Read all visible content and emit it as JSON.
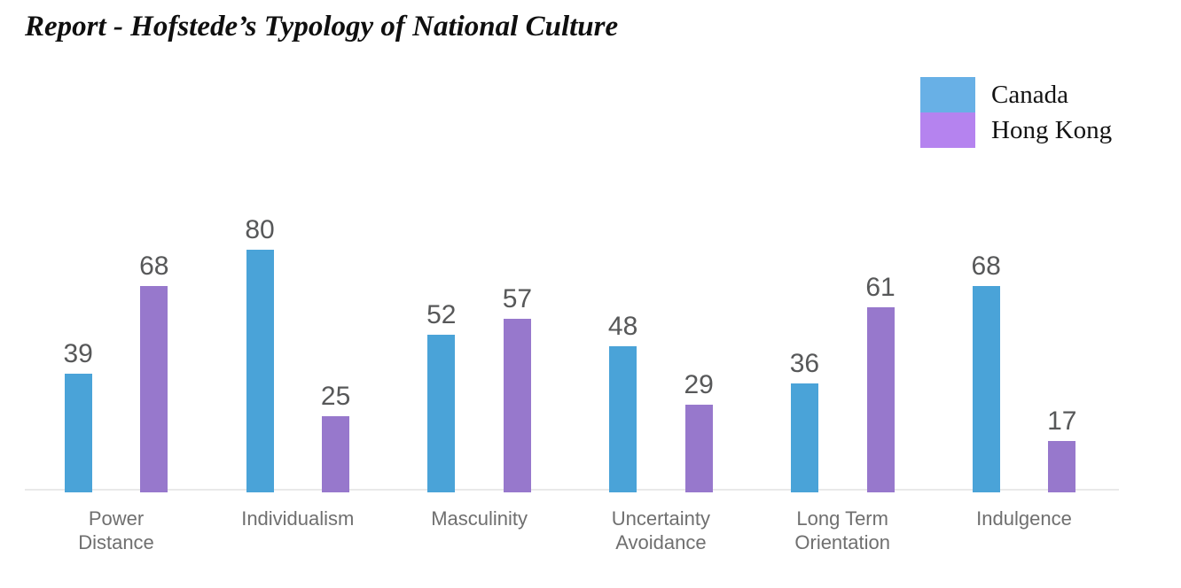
{
  "page": {
    "title": "Report - Hofstede’s Typology of National Culture"
  },
  "legend": {
    "position": "top-right",
    "items": [
      {
        "label": "Canada",
        "color": "#68b0e6"
      },
      {
        "label": "Hong Kong",
        "color": "#b583ef"
      }
    ]
  },
  "chart_data": {
    "type": "bar",
    "title": "Report - Hofstede’s Typology of National Culture",
    "categories": [
      "Power Distance",
      "Individualism",
      "Masculinity",
      "Uncertainty Avoidance",
      "Long Term Orientation",
      "Indulgence"
    ],
    "series": [
      {
        "name": "Canada",
        "color": "#4aa3d8",
        "values": [
          39,
          80,
          52,
          48,
          36,
          68
        ]
      },
      {
        "name": "Hong Kong",
        "color": "#9778cc",
        "values": [
          68,
          25,
          57,
          29,
          61,
          17
        ]
      }
    ],
    "xlabel": "",
    "ylabel": "",
    "ylim": [
      0,
      90
    ],
    "grid": false,
    "y_axis_visible": false,
    "data_labels": true,
    "legend_position": "top-right",
    "colors": {
      "value_label": "#575859",
      "category_label": "#6f6f6f",
      "axis_line": "#e9e9e9"
    }
  }
}
